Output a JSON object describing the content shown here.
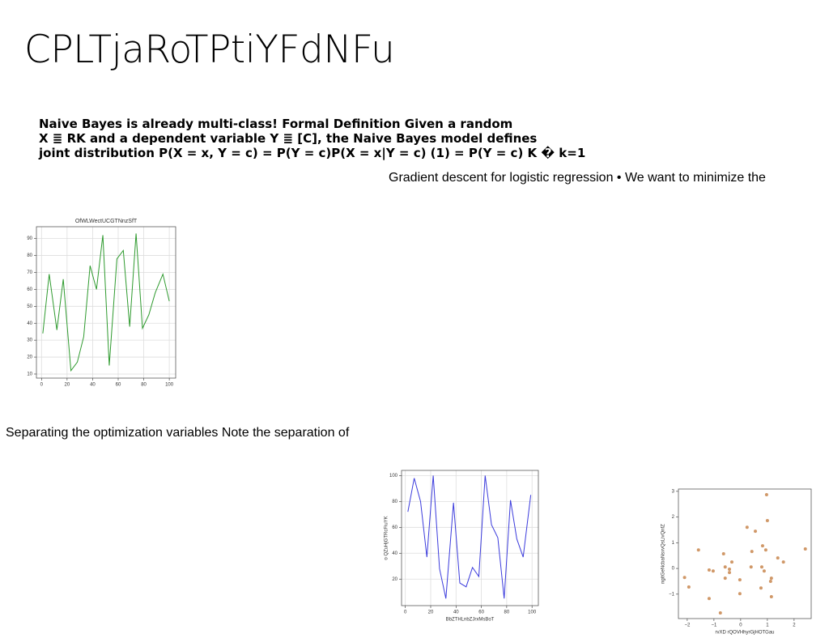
{
  "header": {
    "title": "CPLTjaRoTPtiYFdNFu"
  },
  "texts": {
    "bold_paragraph": [
      "Naive Bayes is already multi-class! Formal Definition Given a random",
      "X ≣ RK and a dependent variable Y ≣ [C], the Naive Bayes model defines",
      "joint distribution P(X = x, Y = c) = P(Y = c)P(X = x|Y = c) (1) = P(Y = c) K � k=1"
    ],
    "gradient_note": "Gradient descent for logistic regression • We want to minimize the",
    "separating_note": "Separating the optimization variables Note the separation of"
  },
  "chart_data": [
    {
      "type": "line",
      "title": "OfWLWectUCGTNnzSfT",
      "grid": true,
      "x": [
        1,
        6,
        12,
        17,
        23,
        28,
        33,
        38,
        43,
        48,
        53,
        59,
        64,
        69,
        74,
        79,
        84,
        89,
        95,
        100
      ],
      "series": [
        {
          "color": "#2e9a2e",
          "values": [
            34,
            69,
            36,
            66,
            12,
            17,
            32,
            74,
            60,
            92,
            15,
            78,
            83,
            38,
            93,
            37,
            45,
            58,
            69,
            53
          ]
        }
      ],
      "xlim": [
        -4,
        105
      ],
      "ylim": [
        7.6,
        97
      ],
      "xticks": [
        0,
        20,
        40,
        60,
        80,
        100
      ],
      "yticks": [
        10,
        20,
        30,
        40,
        50,
        60,
        70,
        80,
        90
      ]
    },
    {
      "type": "line",
      "x_label": "BbZTHLnbZJrxMsBoT",
      "y_label": "o QZuHjGTRcFiuYK",
      "grid": true,
      "x": [
        2,
        7,
        12,
        17,
        22,
        27,
        32,
        38,
        43,
        48,
        53,
        58,
        63,
        68,
        73,
        78,
        83,
        88,
        93,
        99
      ],
      "series": [
        {
          "color": "#3b3bdc",
          "values": [
            72,
            98,
            80,
            37,
            100,
            28,
            5,
            79,
            17,
            14,
            29,
            22,
            100,
            62,
            52,
            5,
            81,
            51,
            37,
            85
          ]
        }
      ],
      "xlim": [
        -3,
        105
      ],
      "ylim": [
        -0.5,
        104
      ],
      "xticks": [
        0,
        20,
        40,
        60,
        80,
        100
      ],
      "yticks": [
        20,
        40,
        60,
        80,
        100
      ]
    },
    {
      "type": "scatter",
      "x_label": "rvXD rQOVHhyrGjHOTGau",
      "y_label": "ngitGeNcbaNsxvQsLivQnfZ",
      "grid": false,
      "x": [
        -2.1,
        -1.94,
        -1.58,
        -1.18,
        -1.18,
        -1.03,
        -0.76,
        -0.64,
        -0.58,
        -0.58,
        -0.42,
        -0.42,
        -0.33,
        -0.03,
        -0.03,
        0.24,
        0.39,
        0.42,
        0.55,
        0.76,
        0.79,
        0.82,
        0.88,
        0.97,
        1.0,
        0.94,
        1.12,
        1.15,
        1.15,
        1.39,
        1.6,
        2.42
      ],
      "series": [
        {
          "color": "#c8864e",
          "values": [
            -0.35,
            -0.72,
            0.72,
            -1.17,
            -0.06,
            -0.1,
            -1.73,
            0.57,
            0.06,
            -0.38,
            -0.03,
            -0.16,
            0.25,
            -0.98,
            -0.44,
            1.6,
            0.06,
            0.66,
            1.45,
            -0.76,
            0.06,
            0.88,
            -0.1,
            2.87,
            1.86,
            0.72,
            -0.5,
            -0.38,
            -1.1,
            0.41,
            0.25,
            0.76
          ]
        }
      ],
      "xlim": [
        -2.33,
        2.64
      ],
      "ylim": [
        -1.95,
        3.09
      ],
      "xticks": [
        {
          "value": -2,
          "label": "−2"
        },
        {
          "value": -1,
          "label": "−1"
        },
        0,
        1,
        2
      ],
      "yticks": [
        {
          "value": -1,
          "label": "−1"
        },
        0,
        1,
        2,
        3
      ]
    }
  ]
}
